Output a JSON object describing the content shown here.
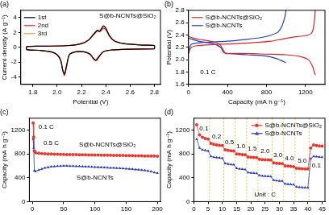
{
  "chart_data": [
    {
      "type": "line",
      "title": "(a)",
      "x_label": "Potential (V)",
      "y_label": "Current density (A g⁻¹)",
      "xlim": [
        1.7,
        2.85
      ],
      "ylim": [
        -5,
        5
      ],
      "xticks": [
        1.8,
        {
          "value": 2,
          "label": "2.0"
        },
        2.2,
        2.4,
        2.6,
        2.8
      ],
      "yticks": [
        -4,
        -2,
        0,
        2,
        4
      ],
      "grid": false,
      "legend": "upper left",
      "x": [
        2.8,
        2.6,
        2.45,
        2.38,
        2.34,
        2.32,
        2.3,
        2.27,
        2.22,
        2.15,
        2.1,
        2.08,
        2.06,
        2.045,
        2.03,
        2.0,
        1.95,
        1.85,
        1.75,
        1.75,
        1.9,
        2.1,
        2.2,
        2.26,
        2.3,
        2.33,
        2.35,
        2.38,
        2.4,
        2.43,
        2.47,
        2.55,
        2.7,
        2.8,
        2.8
      ],
      "series": [
        {
          "name": "1st",
          "color": "#000000",
          "values": [
            -0.2,
            -0.25,
            -0.35,
            -0.6,
            -1.3,
            -1.7,
            -1.5,
            -0.9,
            -0.6,
            -0.6,
            -1.0,
            -2.2,
            -3.6,
            -3.0,
            -1.8,
            -1.0,
            -0.6,
            -0.4,
            -0.3,
            0.1,
            0.15,
            0.25,
            0.5,
            1.0,
            1.8,
            2.3,
            2.2,
            2.9,
            2.6,
            1.6,
            0.9,
            0.5,
            0.3,
            0.25,
            -0.2
          ]
        },
        {
          "name": "2nd",
          "color": "#e0262a",
          "values": [
            -0.2,
            -0.25,
            -0.35,
            -0.6,
            -1.4,
            -1.8,
            -1.6,
            -0.95,
            -0.6,
            -0.6,
            -1.0,
            -2.4,
            -3.8,
            -3.1,
            -1.8,
            -1.0,
            -0.6,
            -0.4,
            -0.3,
            0.1,
            0.15,
            0.25,
            0.5,
            1.0,
            1.7,
            2.2,
            2.1,
            2.6,
            2.4,
            1.5,
            0.85,
            0.5,
            0.3,
            0.25,
            -0.2
          ]
        },
        {
          "name": "3rd",
          "color": "#f2a33a",
          "values": [
            -0.2,
            -0.25,
            -0.35,
            -0.6,
            -1.4,
            -1.8,
            -1.6,
            -0.95,
            -0.6,
            -0.6,
            -1.0,
            -2.4,
            -3.7,
            -3.1,
            -1.8,
            -1.0,
            -0.6,
            -0.4,
            -0.3,
            0.1,
            0.15,
            0.25,
            0.5,
            1.0,
            1.7,
            2.2,
            2.15,
            2.5,
            2.35,
            1.5,
            0.85,
            0.5,
            0.3,
            0.25,
            -0.2
          ]
        }
      ],
      "annotations": [
        {
          "text": "S@b-NCNTs@SiO₂",
          "x": 2.58,
          "y": 4.2
        }
      ]
    },
    {
      "type": "line",
      "title": "(b)",
      "x_label": "Capacity (mA h g⁻¹)",
      "y_label": "Potential (V)",
      "xlim": [
        0,
        1400
      ],
      "ylim": [
        1.6,
        2.8
      ],
      "xticks": [
        0,
        400,
        800,
        1200
      ],
      "yticks": [
        1.6,
        1.8,
        {
          "value": 2,
          "label": "2.0"
        },
        2.2,
        2.4,
        2.6,
        2.8
      ],
      "grid": false,
      "legend": "upper left",
      "series": [
        {
          "name": "S@b-NCNTs@SiO₂",
          "color": "#d6262b",
          "x": [
            0,
            50,
            150,
            250,
            320,
            360,
            380,
            420,
            600,
            800,
            1000,
            1150,
            1230,
            1270,
            1300,
            null,
            0,
            30,
            100,
            300,
            500,
            700,
            850,
            950,
            1050,
            1150,
            1230,
            1270,
            1290,
            1300
          ],
          "values": [
            2.38,
            2.35,
            2.32,
            2.29,
            2.25,
            2.15,
            2.1,
            2.1,
            2.1,
            2.09,
            2.08,
            2.05,
            2.0,
            1.9,
            1.75,
            null,
            2.1,
            2.2,
            2.23,
            2.25,
            2.26,
            2.28,
            2.3,
            2.33,
            2.36,
            2.38,
            2.4,
            2.45,
            2.6,
            2.8
          ]
        },
        {
          "name": "S@b-NCNTs",
          "color": "#1f3fbf",
          "x": [
            0,
            100,
            250,
            330,
            360,
            400,
            600,
            800,
            900,
            960,
            1000,
            null,
            0,
            30,
            150,
            400,
            600,
            750,
            850,
            920,
            960,
            990,
            1000
          ],
          "values": [
            2.35,
            2.3,
            2.26,
            2.2,
            2.12,
            2.1,
            2.08,
            2.06,
            2.02,
            1.98,
            1.95,
            null,
            2.15,
            2.25,
            2.28,
            2.3,
            2.33,
            2.36,
            2.4,
            2.45,
            2.55,
            2.7,
            2.8
          ]
        }
      ],
      "annotations": [
        {
          "text": "0.1 C",
          "x": 200,
          "y": 1.8
        }
      ]
    },
    {
      "type": "line",
      "title": "(c)",
      "y_label": "Capacity (mA h g⁻¹)",
      "xlim": [
        -5,
        205
      ],
      "ylim": [
        0,
        1400
      ],
      "xticks": [
        0,
        50,
        100,
        150,
        200
      ],
      "yticks": [
        0,
        400,
        800,
        1200
      ],
      "grid": false,
      "x": [
        1,
        2,
        3,
        5,
        10,
        15,
        20,
        25,
        30,
        35,
        40,
        45,
        50,
        55,
        60,
        65,
        70,
        75,
        80,
        85,
        90,
        95,
        100,
        105,
        110,
        115,
        120,
        125,
        130,
        135,
        140,
        145,
        150,
        155,
        160,
        165,
        170,
        175,
        180,
        185,
        190,
        195,
        200
      ],
      "series": [
        {
          "name": "S@b-NCNTs@SiO₂",
          "color": "#e8392f",
          "marker": "circle",
          "values": [
            1320,
            1080,
            850,
            820,
            812,
            806,
            802,
            800,
            798,
            796,
            795,
            794,
            792,
            790,
            790,
            789,
            788,
            787,
            786,
            785,
            784,
            783,
            782,
            781,
            780,
            780,
            779,
            778,
            777,
            776,
            775,
            774,
            773,
            772,
            771,
            770,
            769,
            768,
            767,
            766,
            765,
            764,
            763
          ]
        },
        {
          "name": "S@b-NCNTs",
          "color": "#2a3cb5",
          "marker": "triangle",
          "values": [
            1050,
            900,
            520,
            510,
            530,
            550,
            565,
            575,
            585,
            590,
            595,
            598,
            600,
            600,
            598,
            596,
            594,
            592,
            590,
            588,
            585,
            583,
            580,
            578,
            575,
            572,
            570,
            567,
            565,
            562,
            560,
            556,
            552,
            548,
            545,
            540,
            535,
            530,
            525,
            515,
            505,
            490,
            480
          ]
        }
      ],
      "annotations": [
        {
          "text": "0.1 C",
          "x": 22,
          "y": 1250
        },
        {
          "text": "0.5 C",
          "x": 30,
          "y": 980
        },
        {
          "text": "S@b-NCNTs@SiO₂",
          "x": 120,
          "y": 950
        },
        {
          "text": "S@b-NCNTs",
          "x": 100,
          "y": 400
        }
      ]
    },
    {
      "type": "line",
      "title": "(d)",
      "y_label": "Capacity (mA h g⁻¹)",
      "xlim": [
        0,
        46
      ],
      "ylim": [
        0,
        1400
      ],
      "xticks": [
        0,
        5,
        10,
        15,
        20,
        25,
        30,
        35,
        40,
        45
      ],
      "yticks": [
        0,
        400,
        800,
        1200
      ],
      "grid": false,
      "legend": "upper right",
      "x": [
        1,
        2,
        3,
        4,
        5,
        6,
        7,
        8,
        9,
        10,
        11,
        12,
        13,
        14,
        15,
        16,
        17,
        18,
        19,
        20,
        21,
        22,
        23,
        24,
        25,
        26,
        27,
        28,
        29,
        30,
        31,
        32,
        33,
        34,
        35,
        36,
        37,
        38,
        39,
        40,
        41,
        42,
        43,
        44,
        45
      ],
      "series": [
        {
          "name": "S@b-NCNTs@SiO₂",
          "color": "#e8392f",
          "marker": "circle",
          "values": [
            1290,
            1120,
            1080,
            1060,
            1050,
            980,
            960,
            950,
            945,
            940,
            870,
            860,
            855,
            850,
            800,
            795,
            790,
            786,
            750,
            745,
            742,
            738,
            710,
            705,
            702,
            700,
            698,
            650,
            645,
            642,
            638,
            600,
            595,
            592,
            588,
            560,
            555,
            552,
            550,
            548,
            900,
            950,
            940,
            935,
            930
          ]
        },
        {
          "name": "S@b-NCNTs",
          "color": "#2a3cb5",
          "marker": "triangle",
          "values": [
            1050,
            900,
            870,
            860,
            850,
            760,
            745,
            740,
            735,
            730,
            640,
            630,
            625,
            620,
            560,
            550,
            545,
            540,
            490,
            482,
            478,
            475,
            440,
            432,
            428,
            425,
            422,
            360,
            352,
            348,
            345,
            300,
            292,
            288,
            285,
            250,
            242,
            238,
            235,
            232,
            720,
            760,
            755,
            750,
            745
          ]
        }
      ],
      "rate_boundaries": [
        5.5,
        10.5,
        14.5,
        18.5,
        22.5,
        27.5,
        31.5,
        35.5,
        40.5
      ],
      "annotations": [
        {
          "text": "0.1",
          "x": 3.5,
          "y": 1230
        },
        {
          "text": "0.2",
          "x": 8,
          "y": 1090
        },
        {
          "text": "0.5",
          "x": 12.5,
          "y": 1000
        },
        {
          "text": "1.0",
          "x": 16.5,
          "y": 930
        },
        {
          "text": "1.5",
          "x": 20.5,
          "y": 880
        },
        {
          "text": "2.0",
          "x": 25,
          "y": 840
        },
        {
          "text": "3.0",
          "x": 29.5,
          "y": 780
        },
        {
          "text": "4.0",
          "x": 33.5,
          "y": 730
        },
        {
          "text": "5.0",
          "x": 38,
          "y": 690
        },
        {
          "text": "0.1",
          "x": 43,
          "y": 600
        },
        {
          "text": "Unit : C",
          "x": 25,
          "y": 120
        }
      ]
    }
  ]
}
